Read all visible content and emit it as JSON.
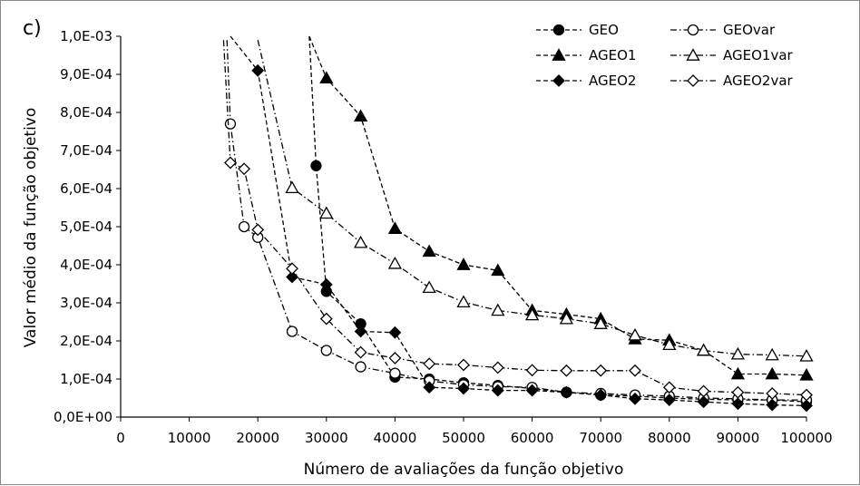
{
  "chart_data": {
    "type": "line",
    "panel_label": "c)",
    "xlabel": "Número de avaliações da função objetivo",
    "ylabel": "Valor médio da função objetivo",
    "xlim": [
      0,
      100000
    ],
    "ylim": [
      0,
      0.001
    ],
    "x_ticks": [
      "0",
      "10000",
      "20000",
      "30000",
      "40000",
      "50000",
      "60000",
      "70000",
      "80000",
      "90000",
      "100000"
    ],
    "y_ticks": [
      "0,0E+00",
      "1,0E-04",
      "2,0E-04",
      "3,0E-04",
      "4,0E-04",
      "5,0E-04",
      "6,0E-04",
      "7,0E-04",
      "8,0E-04",
      "9,0E-04",
      "1,0E-03"
    ],
    "grid": false,
    "legend_position": "top-right",
    "series": [
      {
        "name": "GEO",
        "marker": "circle-filled",
        "line": "dashed",
        "color": "#000000",
        "points": [
          [
            27500,
            0.001
          ],
          [
            28500,
            0.00066
          ],
          [
            30000,
            0.00033
          ],
          [
            35000,
            0.000245
          ],
          [
            40000,
            0.000105
          ],
          [
            45000,
            0.0001
          ],
          [
            50000,
            9e-05
          ],
          [
            55000,
            8.3e-05
          ],
          [
            60000,
            7.5e-05
          ],
          [
            65000,
            6.5e-05
          ],
          [
            70000,
            5.8e-05
          ],
          [
            75000,
            5.5e-05
          ],
          [
            80000,
            5e-05
          ],
          [
            85000,
            4.7e-05
          ],
          [
            90000,
            4.5e-05
          ],
          [
            95000,
            4.5e-05
          ],
          [
            100000,
            4e-05
          ]
        ]
      },
      {
        "name": "GEOvar",
        "marker": "circle-open",
        "line": "dashdot",
        "color": "#000000",
        "points": [
          [
            15500,
            0.00099
          ],
          [
            16000,
            0.00077
          ],
          [
            18000,
            0.0005
          ],
          [
            20000,
            0.000472
          ],
          [
            25000,
            0.000225
          ],
          [
            30000,
            0.000175
          ],
          [
            35000,
            0.000132
          ],
          [
            40000,
            0.000115
          ],
          [
            45000,
            9.5e-05
          ],
          [
            50000,
            8.5e-05
          ],
          [
            55000,
            8e-05
          ],
          [
            60000,
            7.8e-05
          ],
          [
            65000,
            6.5e-05
          ],
          [
            70000,
            6.2e-05
          ],
          [
            75000,
            5.8e-05
          ],
          [
            80000,
            5.5e-05
          ],
          [
            85000,
            5e-05
          ],
          [
            90000,
            4.8e-05
          ],
          [
            95000,
            4.5e-05
          ],
          [
            100000,
            4.5e-05
          ]
        ]
      },
      {
        "name": "AGEO1",
        "marker": "triangle-filled",
        "line": "dashed",
        "color": "#000000",
        "points": [
          [
            27500,
            0.001
          ],
          [
            30000,
            0.00089
          ],
          [
            35000,
            0.00079
          ],
          [
            40000,
            0.000495
          ],
          [
            45000,
            0.000435
          ],
          [
            50000,
            0.0004
          ],
          [
            55000,
            0.000385
          ],
          [
            60000,
            0.00028
          ],
          [
            65000,
            0.00027
          ],
          [
            70000,
            0.000258
          ],
          [
            75000,
            0.000205
          ],
          [
            80000,
            0.000202
          ],
          [
            85000,
            0.000175
          ],
          [
            90000,
            0.000113
          ],
          [
            95000,
            0.000113
          ],
          [
            100000,
            0.00011
          ]
        ]
      },
      {
        "name": "AGEO1var",
        "marker": "triangle-open",
        "line": "dashdot",
        "color": "#000000",
        "points": [
          [
            20000,
            0.00099
          ],
          [
            25000,
            0.000602
          ],
          [
            30000,
            0.000535
          ],
          [
            35000,
            0.000458
          ],
          [
            40000,
            0.000403
          ],
          [
            45000,
            0.00034
          ],
          [
            50000,
            0.000302
          ],
          [
            55000,
            0.00028
          ],
          [
            60000,
            0.000268
          ],
          [
            65000,
            0.000258
          ],
          [
            70000,
            0.000245
          ],
          [
            75000,
            0.000215
          ],
          [
            80000,
            0.00019
          ],
          [
            85000,
            0.000175
          ],
          [
            90000,
            0.000165
          ],
          [
            95000,
            0.000163
          ],
          [
            100000,
            0.00016
          ]
        ]
      },
      {
        "name": "AGEO2",
        "marker": "diamond-filled",
        "line": "dashed",
        "color": "#000000",
        "points": [
          [
            16000,
            0.001
          ],
          [
            20000,
            0.00091
          ],
          [
            25000,
            0.000368
          ],
          [
            30000,
            0.000348
          ],
          [
            35000,
            0.000225
          ],
          [
            40000,
            0.000222
          ],
          [
            45000,
            7.8e-05
          ],
          [
            50000,
            7.5e-05
          ],
          [
            55000,
            7e-05
          ],
          [
            60000,
            7e-05
          ],
          [
            65000,
            6.5e-05
          ],
          [
            70000,
            5.8e-05
          ],
          [
            75000,
            4.8e-05
          ],
          [
            80000,
            4.5e-05
          ],
          [
            85000,
            4e-05
          ],
          [
            90000,
            3.5e-05
          ],
          [
            95000,
            3.2e-05
          ],
          [
            100000,
            3e-05
          ]
        ]
      },
      {
        "name": "AGEO2var",
        "marker": "diamond-open",
        "line": "dashdot",
        "color": "#000000",
        "points": [
          [
            15000,
            0.00099
          ],
          [
            16000,
            0.000668
          ],
          [
            18000,
            0.000652
          ],
          [
            20000,
            0.000492
          ],
          [
            25000,
            0.00039
          ],
          [
            30000,
            0.000258
          ],
          [
            35000,
            0.00017
          ],
          [
            40000,
            0.000155
          ],
          [
            45000,
            0.00014
          ],
          [
            50000,
            0.000137
          ],
          [
            55000,
            0.00013
          ],
          [
            60000,
            0.000123
          ],
          [
            65000,
            0.000122
          ],
          [
            70000,
            0.000122
          ],
          [
            75000,
            0.000122
          ],
          [
            80000,
            7.8e-05
          ],
          [
            85000,
            6.8e-05
          ],
          [
            90000,
            6.5e-05
          ],
          [
            95000,
            6.2e-05
          ],
          [
            100000,
            5.8e-05
          ]
        ]
      }
    ]
  }
}
